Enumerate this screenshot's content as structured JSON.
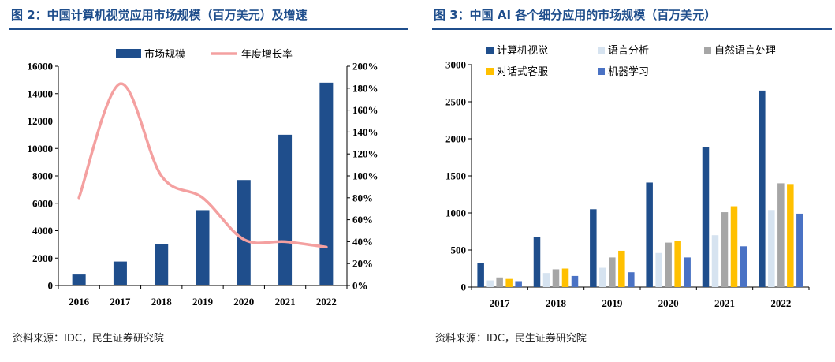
{
  "panels": {
    "left": {
      "title": "图 2：中国计算机视觉应用市场规模（百万美元）及增速",
      "source": "资料来源：IDC，民生证券研究院"
    },
    "right": {
      "title": "图 3：中国 AI 各个细分应用的市场规模（百万美元）",
      "source": "资料来源：IDC，民生证券研究院"
    }
  },
  "colors": {
    "title": "#1f4e8c",
    "bar_primary": "#1f4e8c",
    "growth_line": "#f4a0a0",
    "speech": "#d6e3f0",
    "nlp": "#a6a6a6",
    "customer_service": "#ffc000",
    "machine_learning": "#4a72c4"
  },
  "chart_data": [
    {
      "type": "bar",
      "categories": [
        "2016",
        "2017",
        "2018",
        "2019",
        "2020",
        "2021",
        "2022"
      ],
      "series": [
        {
          "name": "市场规模",
          "type": "bar",
          "axis": "left",
          "values": [
            800,
            1750,
            3000,
            5500,
            7700,
            11000,
            14800
          ]
        },
        {
          "name": "年度增长率",
          "type": "line",
          "axis": "right",
          "unit": "%",
          "values": [
            80,
            184,
            100,
            80,
            42,
            40,
            35
          ]
        }
      ],
      "y_left": {
        "min": 0,
        "max": 16000,
        "ticks": [
          "0",
          "2000",
          "4000",
          "6000",
          "8000",
          "10000",
          "12000",
          "14000",
          "16000"
        ]
      },
      "y_right": {
        "min": 0,
        "max": 200,
        "ticks": [
          "0%",
          "20%",
          "40%",
          "60%",
          "80%",
          "100%",
          "120%",
          "140%",
          "160%",
          "180%",
          "200%"
        ]
      },
      "legend": "top",
      "grid": false
    },
    {
      "type": "bar",
      "categories": [
        "2017",
        "2018",
        "2019",
        "2020",
        "2021",
        "2022"
      ],
      "series": [
        {
          "name": "计算机视觉",
          "values": [
            320,
            680,
            1050,
            1410,
            1890,
            2650
          ]
        },
        {
          "name": "语言分析",
          "values": [
            90,
            190,
            260,
            460,
            700,
            1040
          ]
        },
        {
          "name": "自然语言处理",
          "values": [
            130,
            240,
            400,
            600,
            1010,
            1400
          ]
        },
        {
          "name": "对话式客服",
          "values": [
            110,
            250,
            490,
            620,
            1090,
            1390
          ]
        },
        {
          "name": "机器学习",
          "values": [
            80,
            150,
            200,
            400,
            550,
            990
          ]
        }
      ],
      "y": {
        "min": 0,
        "max": 3000,
        "ticks": [
          "0",
          "500",
          "1000",
          "1500",
          "2000",
          "2500",
          "3000"
        ]
      },
      "legend": "top",
      "grid": false
    }
  ]
}
